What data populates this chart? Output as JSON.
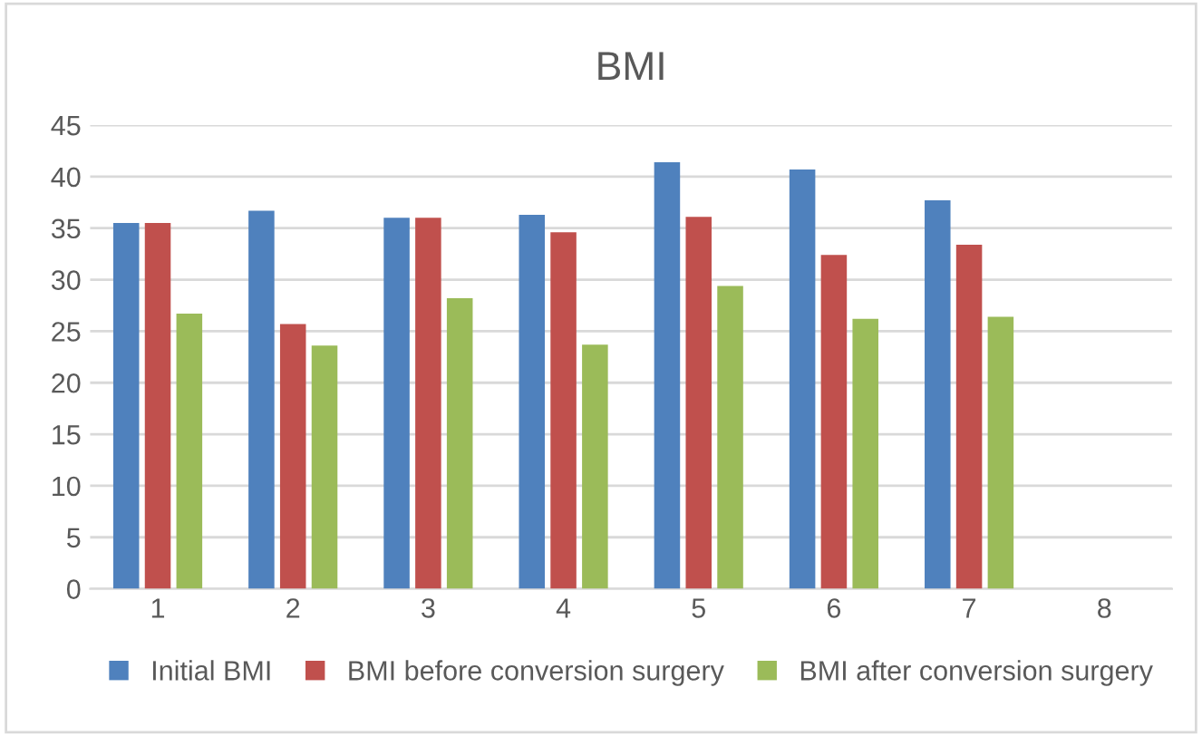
{
  "chart_data": {
    "type": "bar",
    "title": "BMI",
    "categories": [
      "1",
      "2",
      "3",
      "4",
      "5",
      "6",
      "7",
      "8"
    ],
    "series": [
      {
        "name": "Initial BMI",
        "color": "#4f81bd",
        "values": [
          35.5,
          36.7,
          36.0,
          36.3,
          41.4,
          40.7,
          37.7,
          null
        ]
      },
      {
        "name": "BMI before conversion surgery",
        "color": "#c0504d",
        "values": [
          35.5,
          25.7,
          36.0,
          34.6,
          36.1,
          32.4,
          33.4,
          null
        ]
      },
      {
        "name": "BMI after conversion surgery",
        "color": "#9bbb59",
        "values": [
          26.7,
          23.6,
          28.2,
          23.7,
          29.4,
          26.2,
          26.4,
          null
        ]
      }
    ],
    "ylim": [
      0,
      45
    ],
    "yticks": [
      0,
      5,
      10,
      15,
      20,
      25,
      30,
      35,
      40,
      45
    ],
    "grid": "y",
    "legend": "bottom"
  }
}
